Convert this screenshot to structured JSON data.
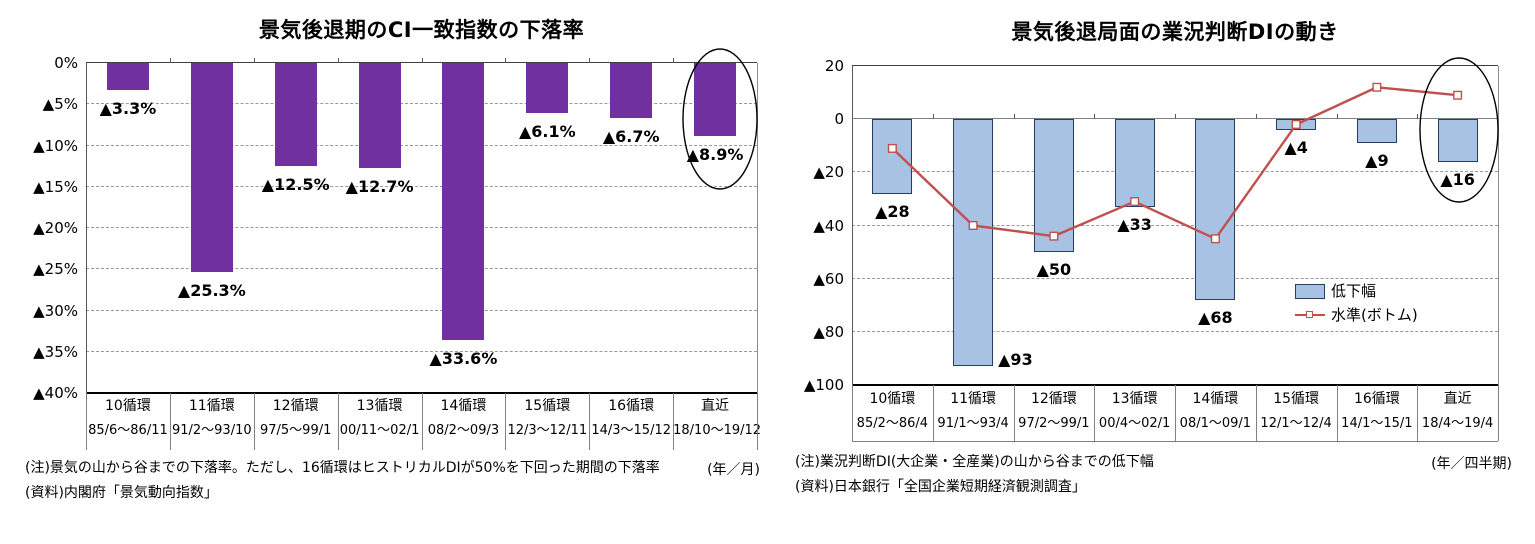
{
  "chart_data": [
    {
      "type": "bar",
      "title": "景気後退期のCI一致指数の下落率",
      "y_axis": {
        "labels": [
          "0%",
          "▲5%",
          "▲10%",
          "▲15%",
          "▲20%",
          "▲25%",
          "▲30%",
          "▲35%",
          "▲40%"
        ],
        "values": [
          0,
          -5,
          -10,
          -15,
          -20,
          -25,
          -30,
          -35,
          -40
        ]
      },
      "ylim": [
        0,
        -40
      ],
      "categories": [
        "10循環",
        "11循環",
        "12循環",
        "13循環",
        "14循環",
        "15循環",
        "16循環",
        "直近"
      ],
      "period_labels": [
        "85/6～86/11",
        "91/2～93/10",
        "97/5～99/1",
        "00/11～02/1",
        "08/2～09/3",
        "12/3～12/11",
        "14/3～15/12",
        "18/10～19/12"
      ],
      "series": [
        {
          "type": "bar",
          "values": [
            -3.3,
            -25.3,
            -12.5,
            -12.7,
            -33.6,
            -6.1,
            -6.7,
            -8.9
          ],
          "data_labels": [
            "▲3.3%",
            "▲25.3%",
            "▲12.5%",
            "▲12.7%",
            "▲33.6%",
            "▲6.1%",
            "▲6.7%",
            "▲8.9%"
          ],
          "color": "#7030A0"
        }
      ],
      "highlight_last_category": true,
      "notes": [
        "(注)景気の山から谷までの下落率。ただし、16循環はヒストリカルDIが50%を下回った期間の下落率",
        "(資料)内閣府「景気動向指数」"
      ],
      "unit_label": "(年／月)"
    },
    {
      "type": "bar+line",
      "title": "景気後退局面の業況判断DIの動き",
      "y_axis": {
        "labels": [
          "20",
          "0",
          "▲20",
          "▲40",
          "▲60",
          "▲80",
          "▲100"
        ],
        "values": [
          20,
          0,
          -20,
          -40,
          -60,
          -80,
          -100
        ]
      },
      "ylim": [
        20,
        -100
      ],
      "categories": [
        "10循環",
        "11循環",
        "12循環",
        "13循環",
        "14循環",
        "15循環",
        "16循環",
        "直近"
      ],
      "period_labels": [
        "85/2～86/4",
        "91/1～93/4",
        "97/2～99/1",
        "00/4～02/1",
        "08/1～09/1",
        "12/1～12/4",
        "14/1～15/1",
        "18/4～19/4"
      ],
      "series": [
        {
          "name": "低下幅",
          "type": "bar",
          "values": [
            -28,
            -93,
            -50,
            -33,
            -68,
            -4,
            -9,
            -16
          ],
          "data_labels": [
            "▲28",
            "▲93",
            "▲50",
            "▲33",
            "▲68",
            "▲4",
            "▲9",
            "▲16"
          ],
          "label_placement": [
            "below",
            "right",
            "below",
            "below",
            "below",
            "below",
            "below",
            "below"
          ],
          "color": "#A8C2E4",
          "border_color": "#243F60"
        },
        {
          "name": "水準(ボトム)",
          "type": "line",
          "values": [
            -11,
            -40,
            -44,
            -31,
            -45,
            -2,
            12,
            9
          ],
          "color": "#C0504D",
          "marker": "square-white"
        }
      ],
      "legend": {
        "items": [
          "低下幅",
          "水準(ボトム)"
        ],
        "position": "inside-right"
      },
      "highlight_last_category": true,
      "notes": [
        "(注)業況判断DI(大企業・全産業)の山から谷までの低下幅",
        "(資料)日本銀行「全国企業短期経済観測調査」"
      ],
      "unit_label": "(年／四半期)"
    }
  ]
}
